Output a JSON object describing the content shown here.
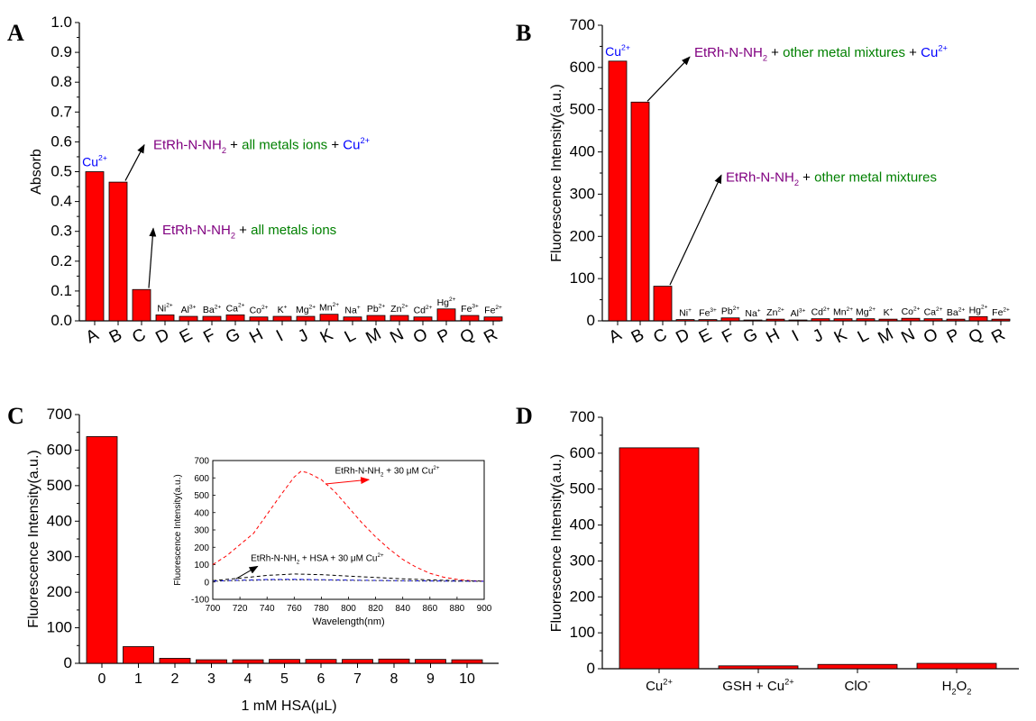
{
  "colors": {
    "bar": "#ff0000",
    "purple": "#800080",
    "green": "#008000",
    "blue": "#0000ff",
    "axis": "#000000"
  },
  "chart_data": [
    {
      "id": "A",
      "panel_label": "A",
      "type": "bar",
      "ylabel": "Absorb",
      "ylim": [
        0,
        1.0
      ],
      "yticks": [
        "0.0",
        "0.1",
        "0.2",
        "0.3",
        "0.4",
        "0.5",
        "0.6",
        "0.7",
        "0.8",
        "0.9",
        "1.0"
      ],
      "categories": [
        "A",
        "B",
        "C",
        "D",
        "E",
        "F",
        "G",
        "H",
        "I",
        "J",
        "K",
        "L",
        "M",
        "N",
        "O",
        "P",
        "Q",
        "R"
      ],
      "values": [
        0.5,
        0.465,
        0.105,
        0.02,
        0.015,
        0.015,
        0.02,
        0.013,
        0.015,
        0.015,
        0.022,
        0.013,
        0.018,
        0.018,
        0.013,
        0.04,
        0.018,
        0.013
      ],
      "bar_labels": [
        {
          "index": 0,
          "base": "Cu",
          "sup": "2+",
          "color": "blue"
        },
        {
          "index": 3,
          "base": "Ni",
          "sup": "2+"
        },
        {
          "index": 4,
          "base": "Al",
          "sup": "3+"
        },
        {
          "index": 5,
          "base": "Ba",
          "sup": "2+"
        },
        {
          "index": 6,
          "base": "Ca",
          "sup": "2+"
        },
        {
          "index": 7,
          "base": "Co",
          "sup": "2+"
        },
        {
          "index": 8,
          "base": "K",
          "sup": "+"
        },
        {
          "index": 9,
          "base": "Mg",
          "sup": "2+"
        },
        {
          "index": 10,
          "base": "Mn",
          "sup": "2+"
        },
        {
          "index": 11,
          "base": "Na",
          "sup": "+"
        },
        {
          "index": 12,
          "base": "Pb",
          "sup": "2+"
        },
        {
          "index": 13,
          "base": "Zn",
          "sup": "2+"
        },
        {
          "index": 14,
          "base": "Cd",
          "sup": "2+"
        },
        {
          "index": 15,
          "base": "Hg",
          "sup": "2+"
        },
        {
          "index": 16,
          "base": "Fe",
          "sup": "3+"
        },
        {
          "index": 17,
          "base": "Fe",
          "sup": "2+"
        }
      ],
      "annotations": [
        {
          "parts": [
            [
              "EtRh-N-NH",
              "purple"
            ],
            [
              "2",
              "purple",
              "sub"
            ],
            [
              " + ",
              "black"
            ],
            [
              "all metals ions",
              "green"
            ],
            [
              " + ",
              "black"
            ],
            [
              "Cu",
              "blue"
            ],
            [
              "2+",
              "blue",
              "sup"
            ]
          ],
          "text_at": [
            170,
            0.575
          ],
          "from": [
            1,
            0.47
          ],
          "to": [
            160,
            0.59
          ]
        },
        {
          "parts": [
            [
              "EtRh-N-NH",
              "purple"
            ],
            [
              "2",
              "purple",
              "sub"
            ],
            [
              " + ",
              "black"
            ],
            [
              "all metals ions",
              "green"
            ]
          ],
          "text_at": [
            180,
            0.29
          ],
          "from": [
            2,
            0.11
          ],
          "to": [
            170,
            0.31
          ]
        }
      ]
    },
    {
      "id": "B",
      "panel_label": "B",
      "type": "bar",
      "ylabel": "Fluorescence Intensity(a.u.)",
      "ylim": [
        0,
        700
      ],
      "yticks": [
        "0",
        "100",
        "200",
        "300",
        "400",
        "500",
        "600",
        "700"
      ],
      "categories": [
        "A",
        "B",
        "C",
        "D",
        "E",
        "F",
        "G",
        "H",
        "I",
        "J",
        "K",
        "L",
        "M",
        "N",
        "O",
        "P",
        "Q",
        "R"
      ],
      "values": [
        615,
        518,
        82,
        3,
        3,
        7,
        2,
        4,
        2,
        5,
        5,
        5,
        4,
        6,
        5,
        4,
        10,
        4
      ],
      "bar_labels": [
        {
          "index": 0,
          "base": "Cu",
          "sup": "2+",
          "color": "blue"
        },
        {
          "index": 3,
          "base": "Ni",
          "sup": "+"
        },
        {
          "index": 4,
          "base": "Fe",
          "sup": "3+"
        },
        {
          "index": 5,
          "base": "Pb",
          "sup": "2+"
        },
        {
          "index": 6,
          "base": "Na",
          "sup": "+"
        },
        {
          "index": 7,
          "base": "Zn",
          "sup": "2+"
        },
        {
          "index": 8,
          "base": "Al",
          "sup": "3+"
        },
        {
          "index": 9,
          "base": "Cd",
          "sup": "2+"
        },
        {
          "index": 10,
          "base": "Mn",
          "sup": "2+"
        },
        {
          "index": 11,
          "base": "Mg",
          "sup": "2+"
        },
        {
          "index": 12,
          "base": "K",
          "sup": "+"
        },
        {
          "index": 13,
          "base": "Co",
          "sup": "2+"
        },
        {
          "index": 14,
          "base": "Ca",
          "sup": "2+"
        },
        {
          "index": 15,
          "base": "Ba",
          "sup": "2+"
        },
        {
          "index": 16,
          "base": "Hg",
          "sup": "2+"
        },
        {
          "index": 17,
          "base": "Fe",
          "sup": "2+"
        }
      ],
      "annotations": [
        {
          "parts": [
            [
              "EtRh-N-NH",
              "purple"
            ],
            [
              "2",
              "purple",
              "sub"
            ],
            [
              " + ",
              "black"
            ],
            [
              "other metal mixtures",
              "green"
            ],
            [
              " + ",
              "black"
            ],
            [
              "Cu",
              "blue"
            ],
            [
              "2+",
              "blue",
              "sup"
            ]
          ],
          "text_at": [
            770,
            625
          ],
          "from": [
            1,
            520
          ],
          "to": [
            765,
            625
          ]
        },
        {
          "parts": [
            [
              "EtRh-N-NH",
              "purple"
            ],
            [
              "2",
              "purple",
              "sub"
            ],
            [
              " + ",
              "black"
            ],
            [
              "other metal mixtures",
              "green"
            ]
          ],
          "text_at": [
            805,
            330
          ],
          "from": [
            2,
            85
          ],
          "to": [
            800,
            345
          ]
        }
      ]
    },
    {
      "id": "C",
      "panel_label": "C",
      "type": "bar",
      "ylabel": "Fluorescence Intensity(a.u.)",
      "xlabel": "1 mM HSA(μL)",
      "ylim": [
        0,
        700
      ],
      "yticks": [
        "0",
        "100",
        "200",
        "300",
        "400",
        "500",
        "600",
        "700"
      ],
      "categories": [
        "0",
        "1",
        "2",
        "3",
        "4",
        "5",
        "6",
        "7",
        "8",
        "9",
        "10"
      ],
      "values": [
        638,
        47,
        14,
        10,
        10,
        11,
        11,
        11,
        12,
        11,
        10
      ],
      "inset": {
        "type": "line",
        "ylabel": "Fluorescence Intensity(a.u.)",
        "xlabel": "Wavelength(nm)",
        "xlim": [
          700,
          900
        ],
        "ylim": [
          -100,
          700
        ],
        "xticks": [
          "700",
          "720",
          "740",
          "760",
          "780",
          "800",
          "820",
          "840",
          "860",
          "880",
          "900"
        ],
        "yticks": [
          "-100",
          "0",
          "100",
          "200",
          "300",
          "400",
          "500",
          "600",
          "700"
        ],
        "series": [
          {
            "color": "#ff0000",
            "dash": "4,3",
            "x": [
              700,
              710,
              720,
              730,
              740,
              750,
              760,
              765,
              770,
              780,
              790,
              800,
              810,
              820,
              830,
              840,
              850,
              860,
              870,
              880,
              890,
              900
            ],
            "y": [
              100,
              150,
              215,
              280,
              390,
              500,
              605,
              638,
              630,
              590,
              520,
              430,
              340,
              260,
              190,
              130,
              85,
              50,
              28,
              15,
              8,
              5
            ]
          },
          {
            "color": "#000000",
            "dash": "4,3",
            "x": [
              700,
              720,
              740,
              760,
              780,
              800,
              820,
              840,
              860,
              880,
              900
            ],
            "y": [
              8,
              22,
              38,
              46,
              42,
              34,
              26,
              18,
              12,
              8,
              5
            ]
          },
          {
            "color": "#0000ff",
            "dash": "5,3",
            "x": [
              700,
              720,
              740,
              760,
              780,
              800,
              820,
              840,
              860,
              880,
              900
            ],
            "y": [
              5,
              10,
              14,
              15,
              13,
              11,
              9,
              7,
              6,
              5,
              4
            ]
          },
          {
            "color": "#555555",
            "dash": "2,2",
            "x": [
              700,
              720,
              740,
              760,
              780,
              800,
              820,
              840,
              860,
              880,
              900
            ],
            "y": [
              4,
              8,
              11,
              12,
              11,
              9,
              8,
              6,
              5,
              4,
              3
            ]
          }
        ],
        "annotations": [
          {
            "parts": [
              [
                "EtRh-N-NH",
                "black"
              ],
              [
                "2",
                "black",
                "sub"
              ],
              [
                " + 30 μM Cu",
                "black"
              ],
              [
                "2+",
                "black",
                "sup"
              ]
            ],
            "text_at": [
              790,
              625
            ],
            "from": [
              783,
              565
            ],
            "to": [
              815,
              590
            ],
            "arrow_color": "#ff0000"
          },
          {
            "parts": [
              [
                "EtRh-N-NH",
                "black"
              ],
              [
                "2",
                "black",
                "sub"
              ],
              [
                " + HSA + 30 μM Cu",
                "black"
              ],
              [
                "2+",
                "black",
                "sup"
              ]
            ],
            "text_at": [
              728,
              120
            ],
            "from": [
              717,
              18
            ],
            "to": [
              733,
              90
            ],
            "arrow_color": "#000000"
          }
        ]
      }
    },
    {
      "id": "D",
      "panel_label": "D",
      "type": "bar",
      "ylabel": "Fluorescence Intensity(a.u.)",
      "ylim": [
        0,
        700
      ],
      "yticks": [
        "0",
        "100",
        "200",
        "300",
        "400",
        "500",
        "600",
        "700"
      ],
      "categories": [
        "Cu2+",
        "GSH + Cu2+",
        "ClO-",
        "H2O2"
      ],
      "category_labels": [
        [
          [
            "Cu"
          ],
          [
            "2+",
            "sup"
          ]
        ],
        [
          [
            "GSH + Cu"
          ],
          [
            "2+",
            "sup"
          ]
        ],
        [
          [
            "ClO"
          ],
          [
            "-",
            "sup"
          ]
        ],
        [
          [
            "H"
          ],
          [
            "2",
            "sub"
          ],
          [
            "O"
          ],
          [
            "2",
            "sub"
          ]
        ]
      ],
      "values": [
        615,
        8,
        12,
        15
      ]
    }
  ]
}
